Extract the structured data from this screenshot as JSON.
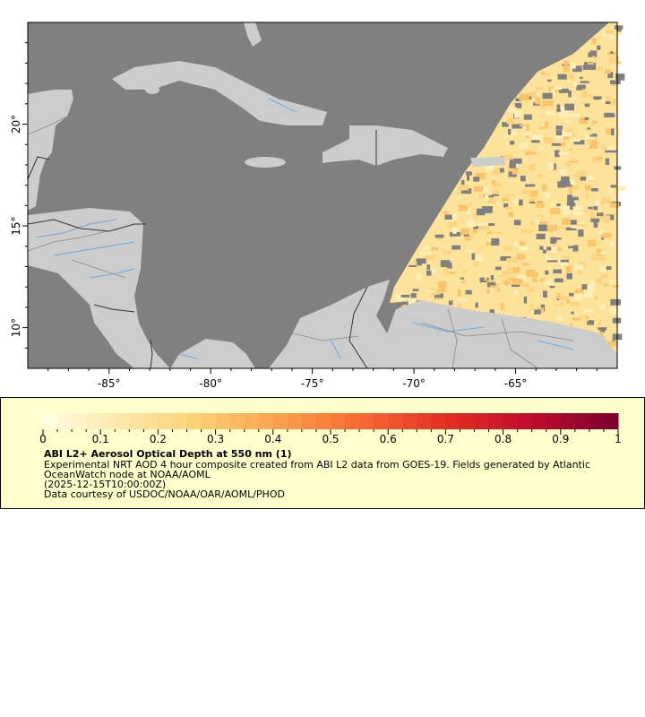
{
  "map": {
    "lon_range": [
      -89,
      -60
    ],
    "lat_range": [
      8,
      25
    ],
    "x_ticks": [
      {
        "value": -85,
        "label": "-85°"
      },
      {
        "value": -80,
        "label": "-80°"
      },
      {
        "value": -75,
        "label": "-75°"
      },
      {
        "value": -70,
        "label": "-70°"
      },
      {
        "value": -65,
        "label": "-65°"
      }
    ],
    "y_ticks": [
      {
        "value": 20,
        "label": "20°"
      },
      {
        "value": 15,
        "label": "15°"
      },
      {
        "value": 10,
        "label": "10°"
      }
    ],
    "colors": {
      "ocean": "#808080",
      "land": "#cccccc",
      "rivers": "#6fa8dc",
      "borders": "#888888",
      "national_borders": "#333333"
    }
  },
  "legend": {
    "colorbar": {
      "min": 0,
      "max": 1,
      "steps": 40,
      "stops": [
        {
          "v": 0,
          "c": "#fffde4"
        },
        {
          "v": 0.25,
          "c": "#fdd57c"
        },
        {
          "v": 0.4,
          "c": "#fba44c"
        },
        {
          "v": 0.55,
          "c": "#f76a34"
        },
        {
          "v": 0.7,
          "c": "#e62e25"
        },
        {
          "v": 0.85,
          "c": "#c00a2a"
        },
        {
          "v": 1,
          "c": "#7a0030"
        }
      ],
      "tick_labels": [
        "0",
        "0.1",
        "0.2",
        "0.3",
        "0.4",
        "0.5",
        "0.6",
        "0.7",
        "0.8",
        "0.9",
        "1"
      ]
    },
    "title": "ABI L2+ Aerosol Optical Depth at 550 nm (1)",
    "description_line1": "Experimental NRT AOD 4 hour composite created from ABI L2 data from GOES-19. Fields generated by Atlantic",
    "description_line2": "OceanWatch node at NOAA/AOML",
    "time": "(2025-12-15T10:00:00Z)",
    "credit": "Data courtesy of USDOC/NOAA/OAR/AOML/PHOD"
  }
}
